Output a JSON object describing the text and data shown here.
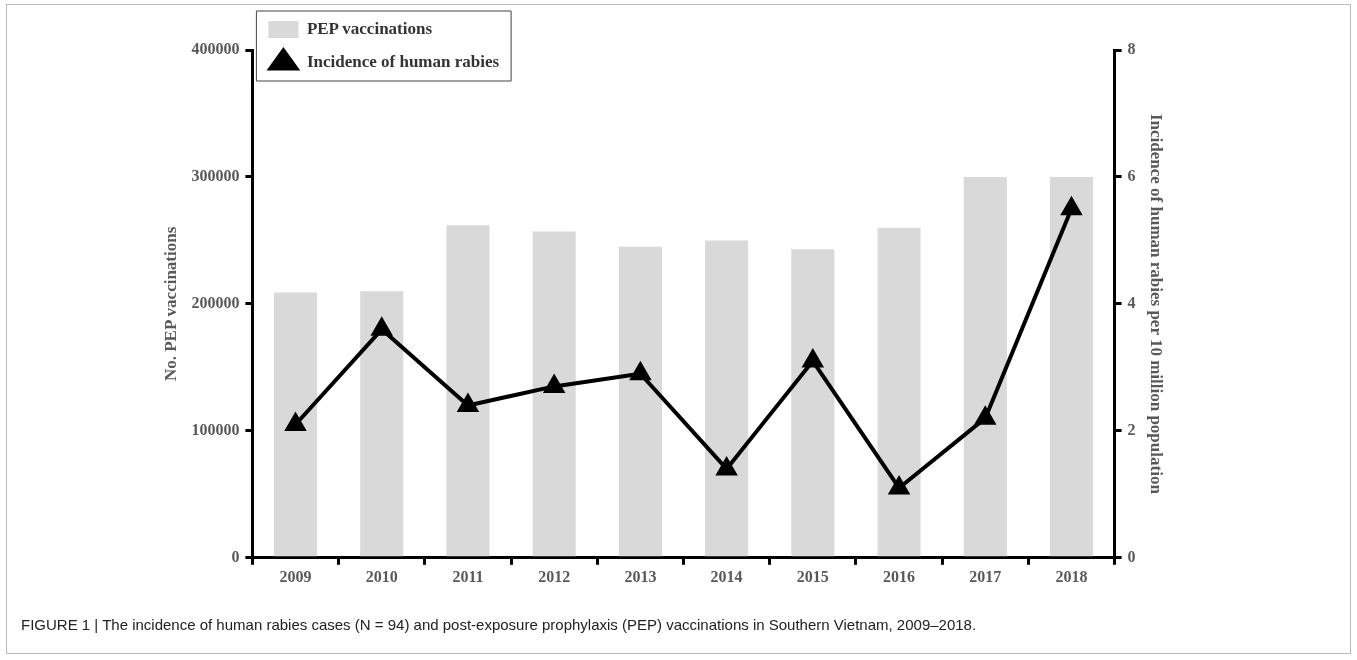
{
  "chart_data": {
    "type": "bar",
    "categories": [
      "2009",
      "2010",
      "2011",
      "2012",
      "2013",
      "2014",
      "2015",
      "2016",
      "2017",
      "2018"
    ],
    "ylabel": "No. PEP vaccinations",
    "y2label": "Incidence of human rabies per 10 million population",
    "series": [
      {
        "name": "PEP vaccinations",
        "color": "#d9d9d9",
        "values": [
          209000,
          210000,
          262000,
          257000,
          245000,
          250000,
          243000,
          260000,
          300000,
          300000
        ]
      },
      {
        "name": "Incidence of human rabies",
        "type": "line",
        "axis": "y2",
        "color": "#000000",
        "marker": "triangle",
        "values": [
          2.1,
          3.6,
          2.4,
          2.7,
          2.9,
          1.4,
          3.1,
          1.1,
          2.2,
          5.5
        ]
      }
    ],
    "ylim": [
      0,
      400000
    ],
    "yticks": [
      0,
      100000,
      200000,
      300000,
      400000
    ],
    "y2lim": [
      0,
      8
    ],
    "y2ticks": [
      0,
      2,
      4,
      6,
      8
    ],
    "grid": false,
    "legend": "top left",
    "annotations": [
      "FIGURE 1 | The incidence of human rabies cases (N = 94) and post-exposure prophylaxis (PEP) vaccinations in Southern Vietnam, 2009–2018."
    ]
  }
}
